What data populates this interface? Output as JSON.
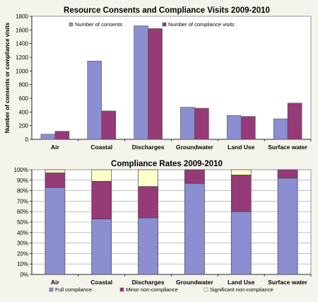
{
  "chart_data": [
    {
      "type": "bar",
      "title": "Resource Consents and Compliance Visits 2009-2010",
      "xlabel": "",
      "ylabel": "Number of consents or compliance visits",
      "ylim": [
        0,
        1800
      ],
      "yticks": [
        0,
        200,
        400,
        600,
        800,
        1000,
        1200,
        1400,
        1600,
        1800
      ],
      "grid": false,
      "legend_placement": "top",
      "categories": [
        "Air",
        "Coastal",
        "Discharges",
        "Groundwater",
        "Land Use",
        "Surface water"
      ],
      "series": [
        {
          "name": "Number of consents",
          "color": "#8b8ed0",
          "values": [
            75,
            1145,
            1660,
            470,
            350,
            300
          ]
        },
        {
          "name": "Number of compliance visits",
          "color": "#963a78",
          "values": [
            118,
            415,
            1620,
            455,
            335,
            530
          ]
        }
      ]
    },
    {
      "type": "stacked-bar",
      "title": "Compliance Rates 2009-2010",
      "xlabel": "",
      "ylabel": "",
      "ylim": [
        0,
        100
      ],
      "yticks": [
        "0%",
        "10%",
        "20%",
        "30%",
        "40%",
        "50%",
        "60%",
        "70%",
        "80%",
        "90%",
        "100%"
      ],
      "grid": true,
      "legend_placement": "bottom",
      "categories": [
        "Air",
        "Coastal",
        "Discharges",
        "Groundwater",
        "Land Use",
        "Surface water"
      ],
      "series": [
        {
          "name": "Full compliance",
          "color": "#8b8ed0",
          "values": [
            83,
            53,
            54,
            87,
            60,
            92
          ]
        },
        {
          "name": "Minor non-compliance",
          "color": "#963a78",
          "values": [
            14,
            36,
            30,
            13,
            35,
            8
          ]
        },
        {
          "name": "Significant non-compliance",
          "color": "#ffffcc",
          "values": [
            3,
            11,
            16,
            0,
            5,
            0
          ]
        }
      ]
    }
  ]
}
